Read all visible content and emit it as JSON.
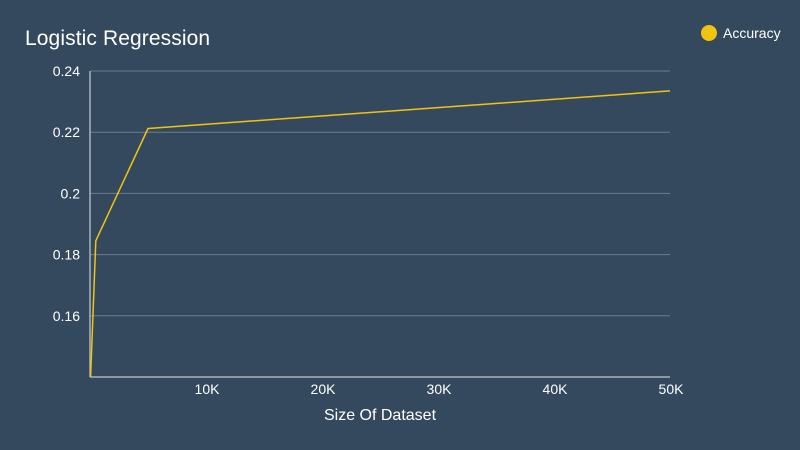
{
  "chart_data": {
    "type": "line",
    "title": "Logistic Regression",
    "xlabel": "Size Of Dataset",
    "ylabel": "",
    "xlim": [
      0,
      50000
    ],
    "ylim": [
      0.14,
      0.24
    ],
    "x_ticks": [
      10000,
      20000,
      30000,
      40000,
      50000
    ],
    "x_tick_labels": [
      "10K",
      "20K",
      "30K",
      "40K",
      "50K"
    ],
    "y_ticks": [
      0.16,
      0.18,
      0.2,
      0.22,
      0.24
    ],
    "y_tick_labels": [
      "0.16",
      "0.18",
      "0.2",
      "0.22",
      "0.24"
    ],
    "grid": true,
    "legend": "top-right",
    "series": [
      {
        "name": "Accuracy",
        "color": "#f1c40f",
        "x": [
          50,
          500,
          5000,
          50000
        ],
        "values": [
          0.14,
          0.1845,
          0.2212,
          0.2335
        ]
      }
    ]
  },
  "colors": {
    "background": "#34495e",
    "grid": "#6b7d8c",
    "axis": "#a9b3bc"
  }
}
